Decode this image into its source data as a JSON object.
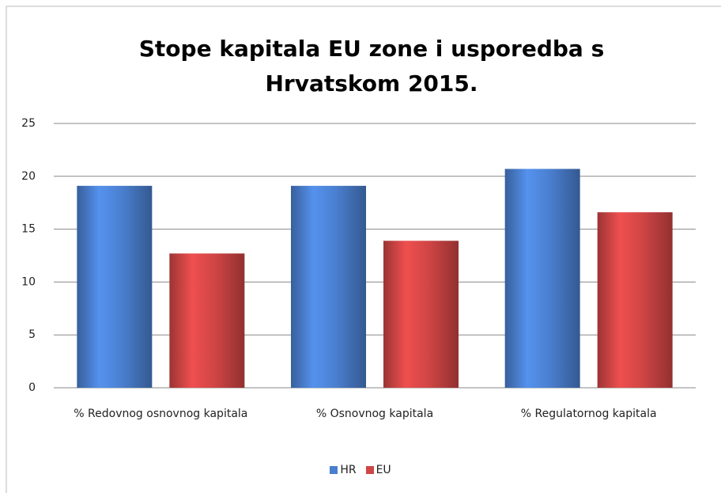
{
  "chart_data": {
    "type": "bar",
    "title": "Stope kapitala EU zone i usporedba s Hrvatskom 2015.",
    "categories": [
      "% Redovnog osnovnog kapitala",
      "% Osnovnog kapitala",
      "% Regulatornog kapitala"
    ],
    "series": [
      {
        "name": "HR",
        "color": "#4a7fcf",
        "values": [
          19.1,
          19.1,
          20.7
        ]
      },
      {
        "name": "EU",
        "color": "#d04545",
        "values": [
          12.7,
          13.9,
          16.6
        ]
      }
    ],
    "ylim": [
      0,
      25
    ],
    "yticks": [
      0,
      5,
      10,
      15,
      20,
      25
    ],
    "grid": true,
    "legend": "bottom"
  }
}
